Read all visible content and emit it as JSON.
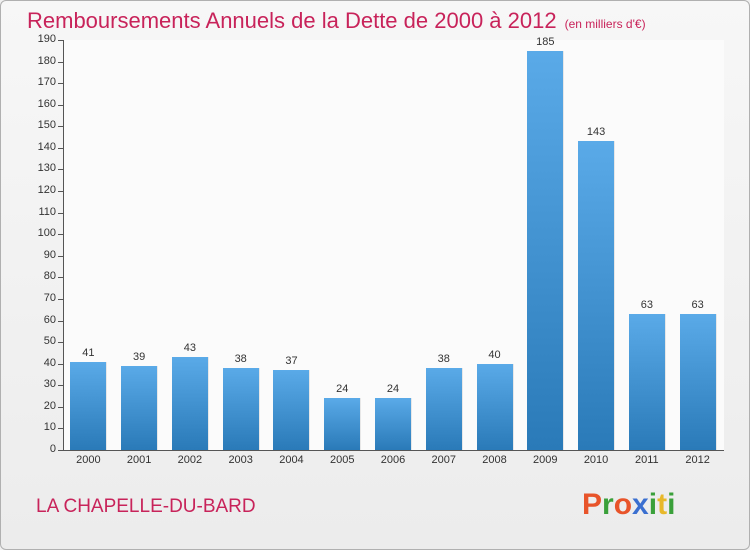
{
  "chart_data": {
    "type": "bar",
    "title": "Remboursements Annuels de la Dette de 2000 à 2012",
    "subtitle": "(en milliers d'€)",
    "categories": [
      "2000",
      "2001",
      "2002",
      "2003",
      "2004",
      "2005",
      "2006",
      "2007",
      "2008",
      "2009",
      "2010",
      "2011",
      "2012"
    ],
    "values": [
      41,
      39,
      43,
      38,
      37,
      24,
      24,
      38,
      40,
      185,
      143,
      63,
      63
    ],
    "ylim": [
      0,
      190
    ],
    "yticks": [
      0,
      10,
      20,
      30,
      40,
      50,
      60,
      70,
      80,
      90,
      100,
      110,
      120,
      130,
      140,
      150,
      160,
      170,
      180,
      190
    ],
    "grid": false,
    "bar_color": "#3d93d6"
  },
  "footer": {
    "city": "LA CHAPELLE-DU-BARD",
    "logo": "Proxiti",
    "logo_colors": [
      "#e8542a",
      "#3aa03a",
      "#e8542a",
      "#3a6fd0",
      "#3aa03a",
      "#e8b82a",
      "#3aa03a"
    ]
  }
}
